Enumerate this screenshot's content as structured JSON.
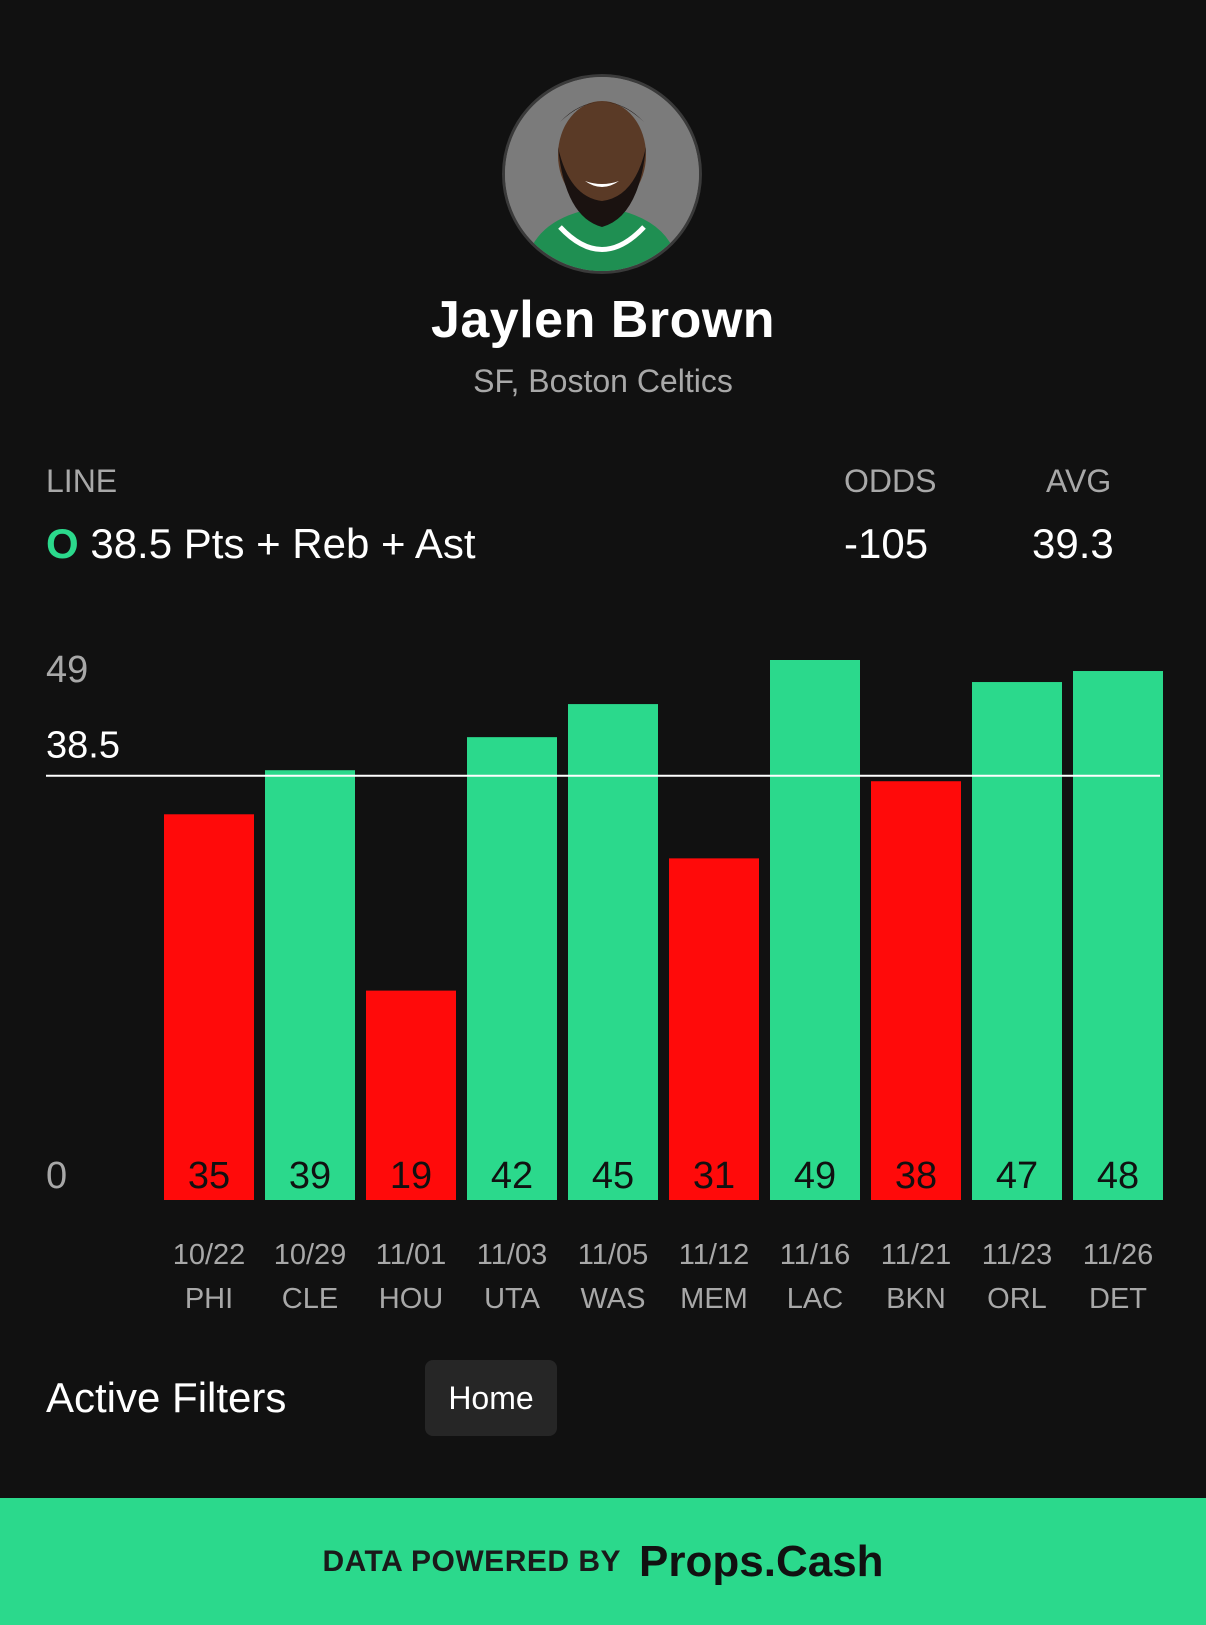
{
  "player": {
    "name": "Jaylen Brown",
    "subtitle": "SF, Boston Celtics",
    "jersey_color": "#1f8f52"
  },
  "line": {
    "label": "LINE",
    "ou": "O",
    "text": "38.5 Pts + Reb + Ast"
  },
  "odds": {
    "label": "ODDS",
    "value": "-105"
  },
  "avg": {
    "label": "AVG",
    "value": "39.3"
  },
  "chart_data": {
    "type": "bar",
    "categories": [
      "10/22 PHI",
      "10/29 CLE",
      "11/01 HOU",
      "11/03 UTA",
      "11/05 WAS",
      "11/12 MEM",
      "11/16 LAC",
      "11/21 BKN",
      "11/23 ORL",
      "11/26 DET"
    ],
    "dates": [
      "10/22",
      "10/29",
      "11/01",
      "11/03",
      "11/05",
      "11/12",
      "11/16",
      "11/21",
      "11/23",
      "11/26"
    ],
    "opponents": [
      "PHI",
      "CLE",
      "HOU",
      "UTA",
      "WAS",
      "MEM",
      "LAC",
      "BKN",
      "ORL",
      "DET"
    ],
    "values": [
      35,
      39,
      19,
      42,
      45,
      31,
      49,
      38,
      47,
      48
    ],
    "line": 38.5,
    "y_tick_labels": [
      "49",
      "38.5",
      "0"
    ],
    "ylim": [
      0,
      49
    ],
    "colors": {
      "over": "#2bd98c",
      "under": "#ff0a0a"
    }
  },
  "filters": {
    "title": "Active Filters",
    "chips": [
      "Home"
    ]
  },
  "footer": {
    "label": "DATA POWERED BY",
    "brand": "Props.Cash"
  },
  "colors": {
    "background": "#111111",
    "accent": "#2bd98c",
    "negative": "#ff0a0a"
  }
}
